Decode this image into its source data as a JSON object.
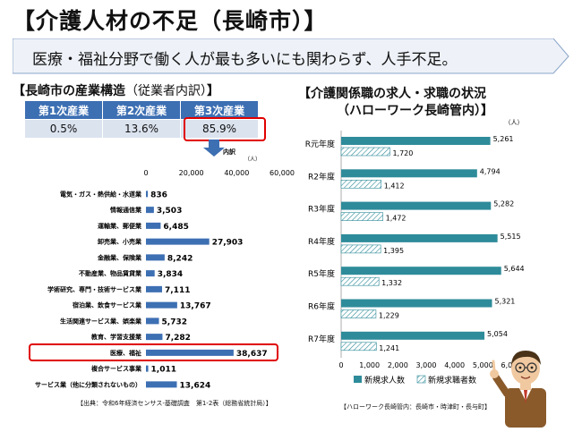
{
  "title": "【介護人材の不足（長崎市）】",
  "banner": "医療・福祉分野で働く人が最も多いにも関わらず、人手不足。",
  "left_section": {
    "title": "【長崎市の産業構造",
    "subtitle": "（従業者内訳）",
    "close": "】"
  },
  "industry_table": {
    "headers": [
      "第1次産業",
      "第2次産業",
      "第3次産業"
    ],
    "values": [
      "0.5%",
      "13.6%",
      "85.9%"
    ]
  },
  "breakdown_label": "内訳",
  "right_section": {
    "line1": "【介護関係職の求人・求職の状況",
    "line2": "（ハローワーク長崎管内）】"
  },
  "source_left": "【出典：令和6年経済センサス-基礎調査　第1-2表（総務省統計局）】",
  "source_right": "【ハローワーク長崎管内：長崎市・時津町・長与町】",
  "colors": {
    "accent": "#3d6fb3",
    "table_bg": "#dbe3ef",
    "teal": "#2e8b9a",
    "highlight": "#e00000",
    "banner": "#eef2f8"
  },
  "chart_data": [
    {
      "type": "bar",
      "orientation": "horizontal",
      "unit": "（人）",
      "categories": [
        "電気・ガス・熱供給・水道業",
        "情報通信業",
        "運輸業、郵便業",
        "卸売業、小売業",
        "金融業、保険業",
        "不動産業、物品賃貸業",
        "学術研究、専門・技術サービス業",
        "宿泊業、飲食サービス業",
        "生活関連サービス業、娯楽業",
        "教育、学習支援業",
        "医療、福祉",
        "複合サービス事業",
        "サービス業（他に分類されないもの）"
      ],
      "values": [
        836,
        3503,
        6485,
        27903,
        8242,
        3834,
        7111,
        13767,
        5732,
        7282,
        38637,
        1011,
        13624
      ],
      "value_labels": [
        "836",
        "3,503",
        "6,485",
        "27,903",
        "8,242",
        "3,834",
        "7,111",
        "13,767",
        "5,732",
        "7,282",
        "38,637",
        "1,011",
        "13,624"
      ],
      "xlim": [
        0,
        60000
      ],
      "xticks": [
        "0",
        "20,000",
        "40,000",
        "60,000"
      ],
      "highlight": "医療、福祉"
    },
    {
      "type": "bar",
      "orientation": "horizontal",
      "unit": "（人）",
      "categories": [
        "R元年度",
        "R2年度",
        "R3年度",
        "R4年度",
        "R5年度",
        "R6年度",
        "R7年度"
      ],
      "series": [
        {
          "name": "新規求人数",
          "values": [
            5261,
            4794,
            5282,
            5515,
            5644,
            5321,
            5054
          ],
          "value_labels": [
            "5,261",
            "4,794",
            "5,282",
            "5,515",
            "5,644",
            "5,321",
            "5,054"
          ]
        },
        {
          "name": "新規求職者数",
          "values": [
            1720,
            1412,
            1472,
            1395,
            1332,
            1229,
            1241
          ],
          "value_labels": [
            "1,720",
            "1,412",
            "1,472",
            "1,395",
            "1,332",
            "1,229",
            "1,241"
          ]
        }
      ],
      "xlim": [
        0,
        6000
      ],
      "xticks": [
        "0",
        "1,000",
        "2,000",
        "3,000",
        "4,000",
        "5,000",
        "6,000"
      ],
      "legend": "bottom"
    }
  ]
}
